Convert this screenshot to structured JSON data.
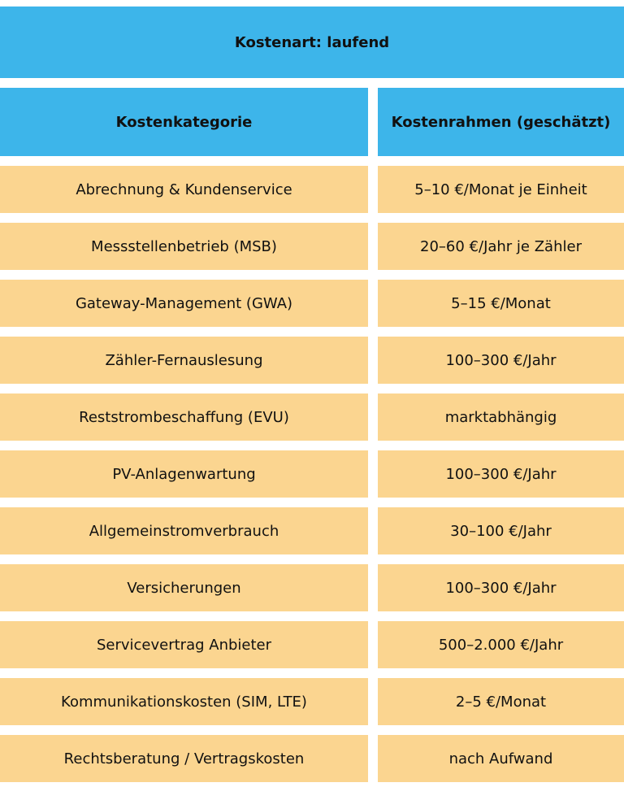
{
  "table": {
    "title": "Kostenart: laufend",
    "headers": [
      "Kostenkategorie",
      "Kostenrahmen (geschätzt)"
    ],
    "rows": [
      [
        "Abrechnung & Kundenservice",
        "5–10 €/Monat je Einheit"
      ],
      [
        "Messstellenbetrieb (MSB)",
        "20–60 €/Jahr je Zähler"
      ],
      [
        "Gateway-Management (GWA)",
        "5–15 €/Monat"
      ],
      [
        "Zähler-Fernauslesung",
        "100–300 €/Jahr"
      ],
      [
        "Reststrombeschaffung (EVU)",
        "marktabhängig"
      ],
      [
        "PV-Anlagenwartung",
        "100–300 €/Jahr"
      ],
      [
        "Allgemeinstromverbrauch",
        "30–100 €/Jahr"
      ],
      [
        "Versicherungen",
        "100–300 €/Jahr"
      ],
      [
        "Servicevertrag Anbieter",
        "500–2.000 €/Jahr"
      ],
      [
        "Kommunikationskosten (SIM, LTE)",
        "2–5 €/Monat"
      ],
      [
        "Rechtsberatung / Vertragskosten",
        "nach Aufwand"
      ]
    ],
    "colors": {
      "header": "#3DB5EA",
      "row": "#FBD590"
    }
  }
}
